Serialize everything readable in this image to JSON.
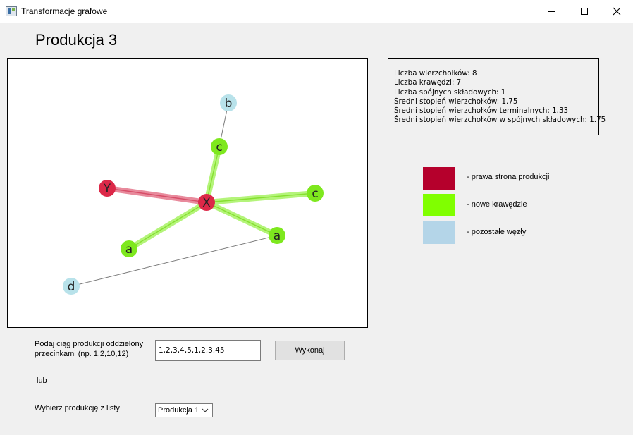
{
  "window": {
    "title": "Transformacje grafowe"
  },
  "page": {
    "title": "Produkcja 3"
  },
  "stats": [
    "Liczba wierzchołków: 8",
    "Liczba krawędzi: 7",
    "Liczba spójnych składowych: 1",
    "Średni stopień wierzchołków: 1.75",
    "Średni stopień wierzchołków terminalnych: 1.33",
    "Średni stopień wierzchołków w spójnych składowych: 1.75"
  ],
  "legend": [
    {
      "label": "- prawa strona produkcji",
      "color": "#b5002c"
    },
    {
      "label": "- nowe krawędzie",
      "color": "#80ff00"
    },
    {
      "label": "- pozostałe węzły",
      "color": "#b4d5e8"
    }
  ],
  "graph": {
    "nodes": [
      {
        "id": "X",
        "label": "X",
        "color": "#dc2848"
      },
      {
        "id": "Y",
        "label": "Y",
        "color": "#dc2848"
      },
      {
        "id": "c1",
        "label": "c",
        "color": "#7ee81e"
      },
      {
        "id": "c2",
        "label": "c",
        "color": "#7ee81e"
      },
      {
        "id": "a1",
        "label": "a",
        "color": "#7ee81e"
      },
      {
        "id": "a2",
        "label": "a",
        "color": "#7ee81e"
      },
      {
        "id": "b",
        "label": "b",
        "color": "#b8e2ea"
      },
      {
        "id": "d",
        "label": "d",
        "color": "#b8e2ea"
      }
    ],
    "edges": [
      {
        "from": "X",
        "to": "Y",
        "type": "production"
      },
      {
        "from": "X",
        "to": "c1",
        "type": "new"
      },
      {
        "from": "X",
        "to": "c2",
        "type": "new"
      },
      {
        "from": "X",
        "to": "a1",
        "type": "new"
      },
      {
        "from": "X",
        "to": "a2",
        "type": "new"
      },
      {
        "from": "c1",
        "to": "b",
        "type": "other"
      },
      {
        "from": "a2",
        "to": "d",
        "type": "other"
      }
    ]
  },
  "form": {
    "sequence_label": "Podaj ciąg produkcji oddzielony przecinkami (np. 1,2,10,12)",
    "sequence_value": "1,2,3,4,5,1,2,3,45",
    "run_button": "Wykonaj",
    "or_label": "lub",
    "choose_label": "Wybierz produkcję z listy",
    "select_value": "Produkcja 1"
  }
}
